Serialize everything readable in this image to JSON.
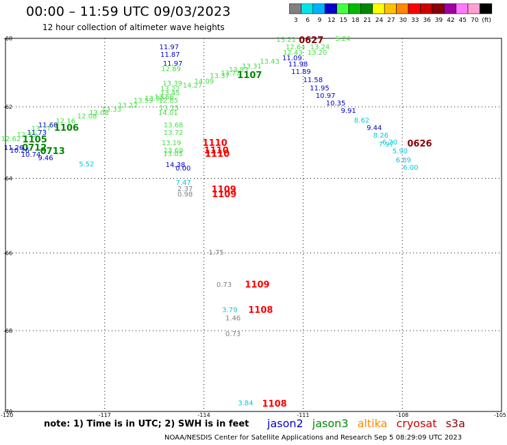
{
  "header": {
    "title": "00:00 – 11:59 UTC 09/03/2023",
    "subtitle": "12 hour collection of altimeter wave heights"
  },
  "colorbar": {
    "colors": [
      "#808080",
      "#00e5e5",
      "#00b2ff",
      "#0000cc",
      "#44ff44",
      "#00bb00",
      "#008800",
      "#ffff00",
      "#ffc000",
      "#ff8800",
      "#ff0000",
      "#cc0000",
      "#880000",
      "#a000a0",
      "#ff77ff",
      "#ffa0d0",
      "#000000"
    ],
    "labels": [
      "3",
      "6",
      "9",
      "12",
      "15",
      "18",
      "21",
      "24",
      "27",
      "30",
      "33",
      "36",
      "39",
      "42",
      "45",
      "70",
      "(ft)"
    ]
  },
  "axes": {
    "y_labels": [
      "-60",
      "-62",
      "-64",
      "-66",
      "-68",
      "-70"
    ],
    "x_labels": [
      "-120",
      "-117",
      "-114",
      "-111",
      "-108",
      "-105"
    ]
  },
  "mission_colors": {
    "jason2": "#0000cc",
    "jason3": "#008800",
    "altika": "#ff8800",
    "cryosat": "#cc0000",
    "s3a": "#880000",
    "lightgreen": "#44dd44",
    "cyan": "#00c8e0",
    "gray": "#808080",
    "red": "#ff0000",
    "darkred": "#880000"
  },
  "observations": [
    {
      "v": "13.21",
      "c": "lightgreen",
      "lon": -111.56,
      "lat": -60.07
    },
    {
      "v": "0627",
      "c": "darkred",
      "lon": -110.82,
      "lat": -60.08,
      "time": true
    },
    {
      "v": "5.24",
      "c": "lightgreen",
      "lon": -109.78,
      "lat": -60.04
    },
    {
      "v": "12.64",
      "c": "lightgreen",
      "lon": -111.28,
      "lat": -60.28
    },
    {
      "v": "13.24",
      "c": "lightgreen",
      "lon": -110.54,
      "lat": -60.29
    },
    {
      "v": "12.43",
      "c": "lightgreen",
      "lon": -111.36,
      "lat": -60.45
    },
    {
      "v": "13.20",
      "c": "lightgreen",
      "lon": -110.62,
      "lat": -60.45
    },
    {
      "v": "11.09",
      "c": "jason2",
      "lon": -111.38,
      "lat": -60.6
    },
    {
      "v": "13.43",
      "c": "lightgreen",
      "lon": -112.06,
      "lat": -60.7
    },
    {
      "v": "11.98",
      "c": "jason2",
      "lon": -111.2,
      "lat": -60.8
    },
    {
      "v": "13.31",
      "c": "lightgreen",
      "lon": -112.6,
      "lat": -60.85
    },
    {
      "v": "13.83",
      "c": "lightgreen",
      "lon": -113.0,
      "lat": -60.95
    },
    {
      "v": "11.89",
      "c": "jason2",
      "lon": -111.11,
      "lat": -61.02
    },
    {
      "v": "13.71",
      "c": "lightgreen",
      "lon": -113.24,
      "lat": -61.05
    },
    {
      "v": "1107",
      "c": "jason3",
      "lon": -112.68,
      "lat": -61.12,
      "time": true
    },
    {
      "v": "13.37",
      "c": "lightgreen",
      "lon": -113.57,
      "lat": -61.13
    },
    {
      "v": "11.58",
      "c": "jason2",
      "lon": -110.75,
      "lat": -61.25
    },
    {
      "v": "14.09",
      "c": "lightgreen",
      "lon": -114.04,
      "lat": -61.29
    },
    {
      "v": "11.95",
      "c": "jason2",
      "lon": -110.55,
      "lat": -61.48
    },
    {
      "v": "14.27",
      "c": "lightgreen",
      "lon": -114.39,
      "lat": -61.4
    },
    {
      "v": "10.97",
      "c": "jason2",
      "lon": -110.37,
      "lat": -61.7
    },
    {
      "v": "10.35",
      "c": "jason2",
      "lon": -110.06,
      "lat": -61.93
    },
    {
      "v": "9.91",
      "c": "jason2",
      "lon": -109.61,
      "lat": -62.14
    },
    {
      "v": "8.62",
      "c": "cyan",
      "lon": -109.21,
      "lat": -62.4
    },
    {
      "v": "9.44",
      "c": "jason2",
      "lon": -108.83,
      "lat": -62.63
    },
    {
      "v": "8.26",
      "c": "cyan",
      "lon": -108.63,
      "lat": -62.84
    },
    {
      "v": "6.20",
      "c": "cyan",
      "lon": -108.36,
      "lat": -63.03
    },
    {
      "v": "7.97",
      "c": "cyan",
      "lon": -108.47,
      "lat": -63.09
    },
    {
      "v": "0626",
      "c": "darkred",
      "lon": -107.54,
      "lat": -63.07,
      "time": true
    },
    {
      "v": "5.90",
      "c": "cyan",
      "lon": -108.05,
      "lat": -63.28
    },
    {
      "v": "6.89",
      "c": "cyan",
      "lon": -107.95,
      "lat": -63.51
    },
    {
      "v": "6.00",
      "c": "cyan",
      "lon": -107.73,
      "lat": -63.73
    },
    {
      "v": "11.97",
      "c": "jason2",
      "lon": -115.1,
      "lat": -60.29
    },
    {
      "v": "11.87",
      "c": "jason2",
      "lon": -115.07,
      "lat": -60.51
    },
    {
      "v": "11.97",
      "c": "jason2",
      "lon": -114.99,
      "lat": -60.78
    },
    {
      "v": "12.89",
      "c": "lightgreen",
      "lon": -115.04,
      "lat": -60.93
    },
    {
      "v": "13.39",
      "c": "lightgreen",
      "lon": -115.0,
      "lat": -61.35
    },
    {
      "v": "13.22",
      "c": "lightgreen",
      "lon": -115.07,
      "lat": -61.5
    },
    {
      "v": "13.45",
      "c": "lightgreen",
      "lon": -115.07,
      "lat": -61.62
    },
    {
      "v": "13.66",
      "c": "lightgreen",
      "lon": -115.25,
      "lat": -61.75
    },
    {
      "v": "13.33",
      "c": "lightgreen",
      "lon": -115.54,
      "lat": -61.78
    },
    {
      "v": "13.59",
      "c": "lightgreen",
      "lon": -115.88,
      "lat": -61.85
    },
    {
      "v": "12.85",
      "c": "lightgreen",
      "lon": -115.12,
      "lat": -61.84
    },
    {
      "v": "13.22",
      "c": "lightgreen",
      "lon": -116.35,
      "lat": -61.98
    },
    {
      "v": "13.33",
      "c": "lightgreen",
      "lon": -116.84,
      "lat": -62.09
    },
    {
      "v": "13.15",
      "c": "lightgreen",
      "lon": -115.1,
      "lat": -62.06
    },
    {
      "v": "14.01",
      "c": "lightgreen",
      "lon": -115.13,
      "lat": -62.2
    },
    {
      "v": "13.08",
      "c": "lightgreen",
      "lon": -117.22,
      "lat": -62.2
    },
    {
      "v": "12.08",
      "c": "lightgreen",
      "lon": -117.58,
      "lat": -62.3
    },
    {
      "v": "12.16",
      "c": "lightgreen",
      "lon": -118.23,
      "lat": -62.43
    },
    {
      "v": "11.60",
      "c": "jason2",
      "lon": -118.76,
      "lat": -62.54
    },
    {
      "v": "1106",
      "c": "jason3",
      "lon": -118.22,
      "lat": -62.63,
      "time": true
    },
    {
      "v": "13.27",
      "c": "lightgreen",
      "lon": -118.97,
      "lat": -62.64
    },
    {
      "v": "13.68",
      "c": "lightgreen",
      "lon": -114.97,
      "lat": -62.54
    },
    {
      "v": "13.72",
      "c": "lightgreen",
      "lon": -114.97,
      "lat": -62.75
    },
    {
      "v": "11.73",
      "c": "jason2",
      "lon": -119.1,
      "lat": -62.76
    },
    {
      "v": "12.35",
      "c": "lightgreen",
      "lon": -119.41,
      "lat": -62.81
    },
    {
      "v": "12.62",
      "c": "lightgreen",
      "lon": -119.88,
      "lat": -62.92
    },
    {
      "v": "1105",
      "c": "jason3",
      "lon": -119.18,
      "lat": -62.95,
      "time": true
    },
    {
      "v": "13.19",
      "c": "lightgreen",
      "lon": -115.03,
      "lat": -63.05
    },
    {
      "v": "1110",
      "c": "red",
      "lon": -113.73,
      "lat": -63.04,
      "time": true
    },
    {
      "v": "11.26",
      "c": "jason2",
      "lon": -119.8,
      "lat": -63.18
    },
    {
      "v": "0712",
      "c": "jason3",
      "lon": -119.19,
      "lat": -63.18,
      "time": true
    },
    {
      "v": "13.69",
      "c": "lightgreen",
      "lon": -114.97,
      "lat": -63.26
    },
    {
      "v": "1110",
      "c": "red",
      "lon": -113.69,
      "lat": -63.26,
      "time": true
    },
    {
      "v": "10.26",
      "c": "jason2",
      "lon": -119.62,
      "lat": -63.26
    },
    {
      "v": "0713",
      "c": "jason3",
      "lon": -118.64,
      "lat": -63.27,
      "time": true
    },
    {
      "v": "13.05",
      "c": "lightgreen",
      "lon": -114.98,
      "lat": -63.35
    },
    {
      "v": "1110",
      "c": "red",
      "lon": -113.66,
      "lat": -63.35,
      "time": true
    },
    {
      "v": "10.74",
      "c": "jason2",
      "lon": -119.28,
      "lat": -63.37
    },
    {
      "v": "9.46",
      "c": "jason2",
      "lon": -118.77,
      "lat": -63.46
    },
    {
      "v": "5.52",
      "c": "cyan",
      "lon": -117.53,
      "lat": -63.64
    },
    {
      "v": "14.38",
      "c": "jason2",
      "lon": -114.91,
      "lat": -63.65
    },
    {
      "v": "0.00",
      "c": "jason2",
      "lon": -114.61,
      "lat": -63.75
    },
    {
      "v": "7.47",
      "c": "cyan",
      "lon": -114.6,
      "lat": -64.13
    },
    {
      "v": "2.37",
      "c": "gray",
      "lon": -114.55,
      "lat": -64.31
    },
    {
      "v": "1109",
      "c": "red",
      "lon": -113.46,
      "lat": -64.33,
      "time": true
    },
    {
      "v": "0.98",
      "c": "gray",
      "lon": -114.55,
      "lat": -64.45
    },
    {
      "v": "1109",
      "c": "red",
      "lon": -113.45,
      "lat": -64.45,
      "time": true
    },
    {
      "v": "1.75",
      "c": "gray",
      "lon": -113.61,
      "lat": -66.0
    },
    {
      "v": "0.73",
      "c": "gray",
      "lon": -113.37,
      "lat": -66.85
    },
    {
      "v": "1109",
      "c": "red",
      "lon": -112.45,
      "lat": -66.85,
      "time": true
    },
    {
      "v": "3.79",
      "c": "cyan",
      "lon": -113.2,
      "lat": -67.5
    },
    {
      "v": "1108",
      "c": "red",
      "lon": -112.35,
      "lat": -67.49,
      "time": true
    },
    {
      "v": "1.46",
      "c": "gray",
      "lon": -113.1,
      "lat": -67.7
    },
    {
      "v": "0.73",
      "c": "gray",
      "lon": -113.1,
      "lat": -68.1
    },
    {
      "v": "3.84",
      "c": "cyan",
      "lon": -112.72,
      "lat": -69.82
    },
    {
      "v": "1108",
      "c": "red",
      "lon": -111.93,
      "lat": -69.83,
      "time": true
    }
  ],
  "note": "note: 1) Time is in UTC; 2) SWH is in feet",
  "missions": [
    "jason2",
    "jason3",
    "altika",
    "cryosat",
    "s3a"
  ],
  "footer": "NOAA/NESDIS Center for Satellite Applications and Research    Sep  5 08:29:09 UTC 2023"
}
